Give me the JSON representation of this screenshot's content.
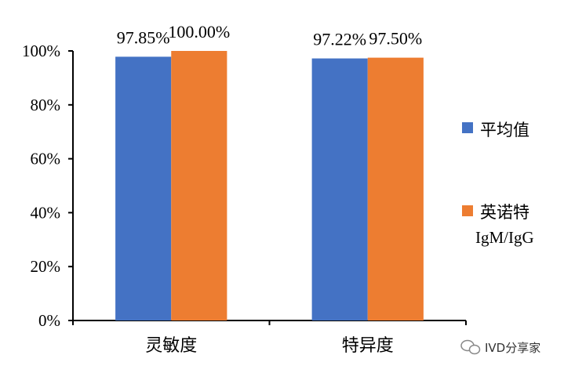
{
  "chart_data": {
    "type": "bar",
    "categories": [
      "灵敏度",
      "特异度"
    ],
    "series": [
      {
        "name": "平均值",
        "values": [
          97.85,
          97.22
        ],
        "color": "#4472C4"
      },
      {
        "name": "英诺特 IgM/IgG",
        "name_lines": [
          "英诺特",
          "IgM/IgG"
        ],
        "values": [
          100.0,
          97.5
        ],
        "color": "#ED7D31"
      }
    ],
    "data_labels": [
      [
        "97.85%",
        "97.22%"
      ],
      [
        "100.00%",
        "97.50%"
      ]
    ],
    "y_ticks": [
      "0%",
      "20%",
      "40%",
      "60%",
      "80%",
      "100%"
    ],
    "ylim": [
      0,
      100
    ],
    "grid": false,
    "legend_position": "right",
    "title": "",
    "xlabel": "",
    "ylabel": ""
  },
  "watermark": {
    "text": "IVD分享家",
    "icon": "wechat-icon"
  }
}
